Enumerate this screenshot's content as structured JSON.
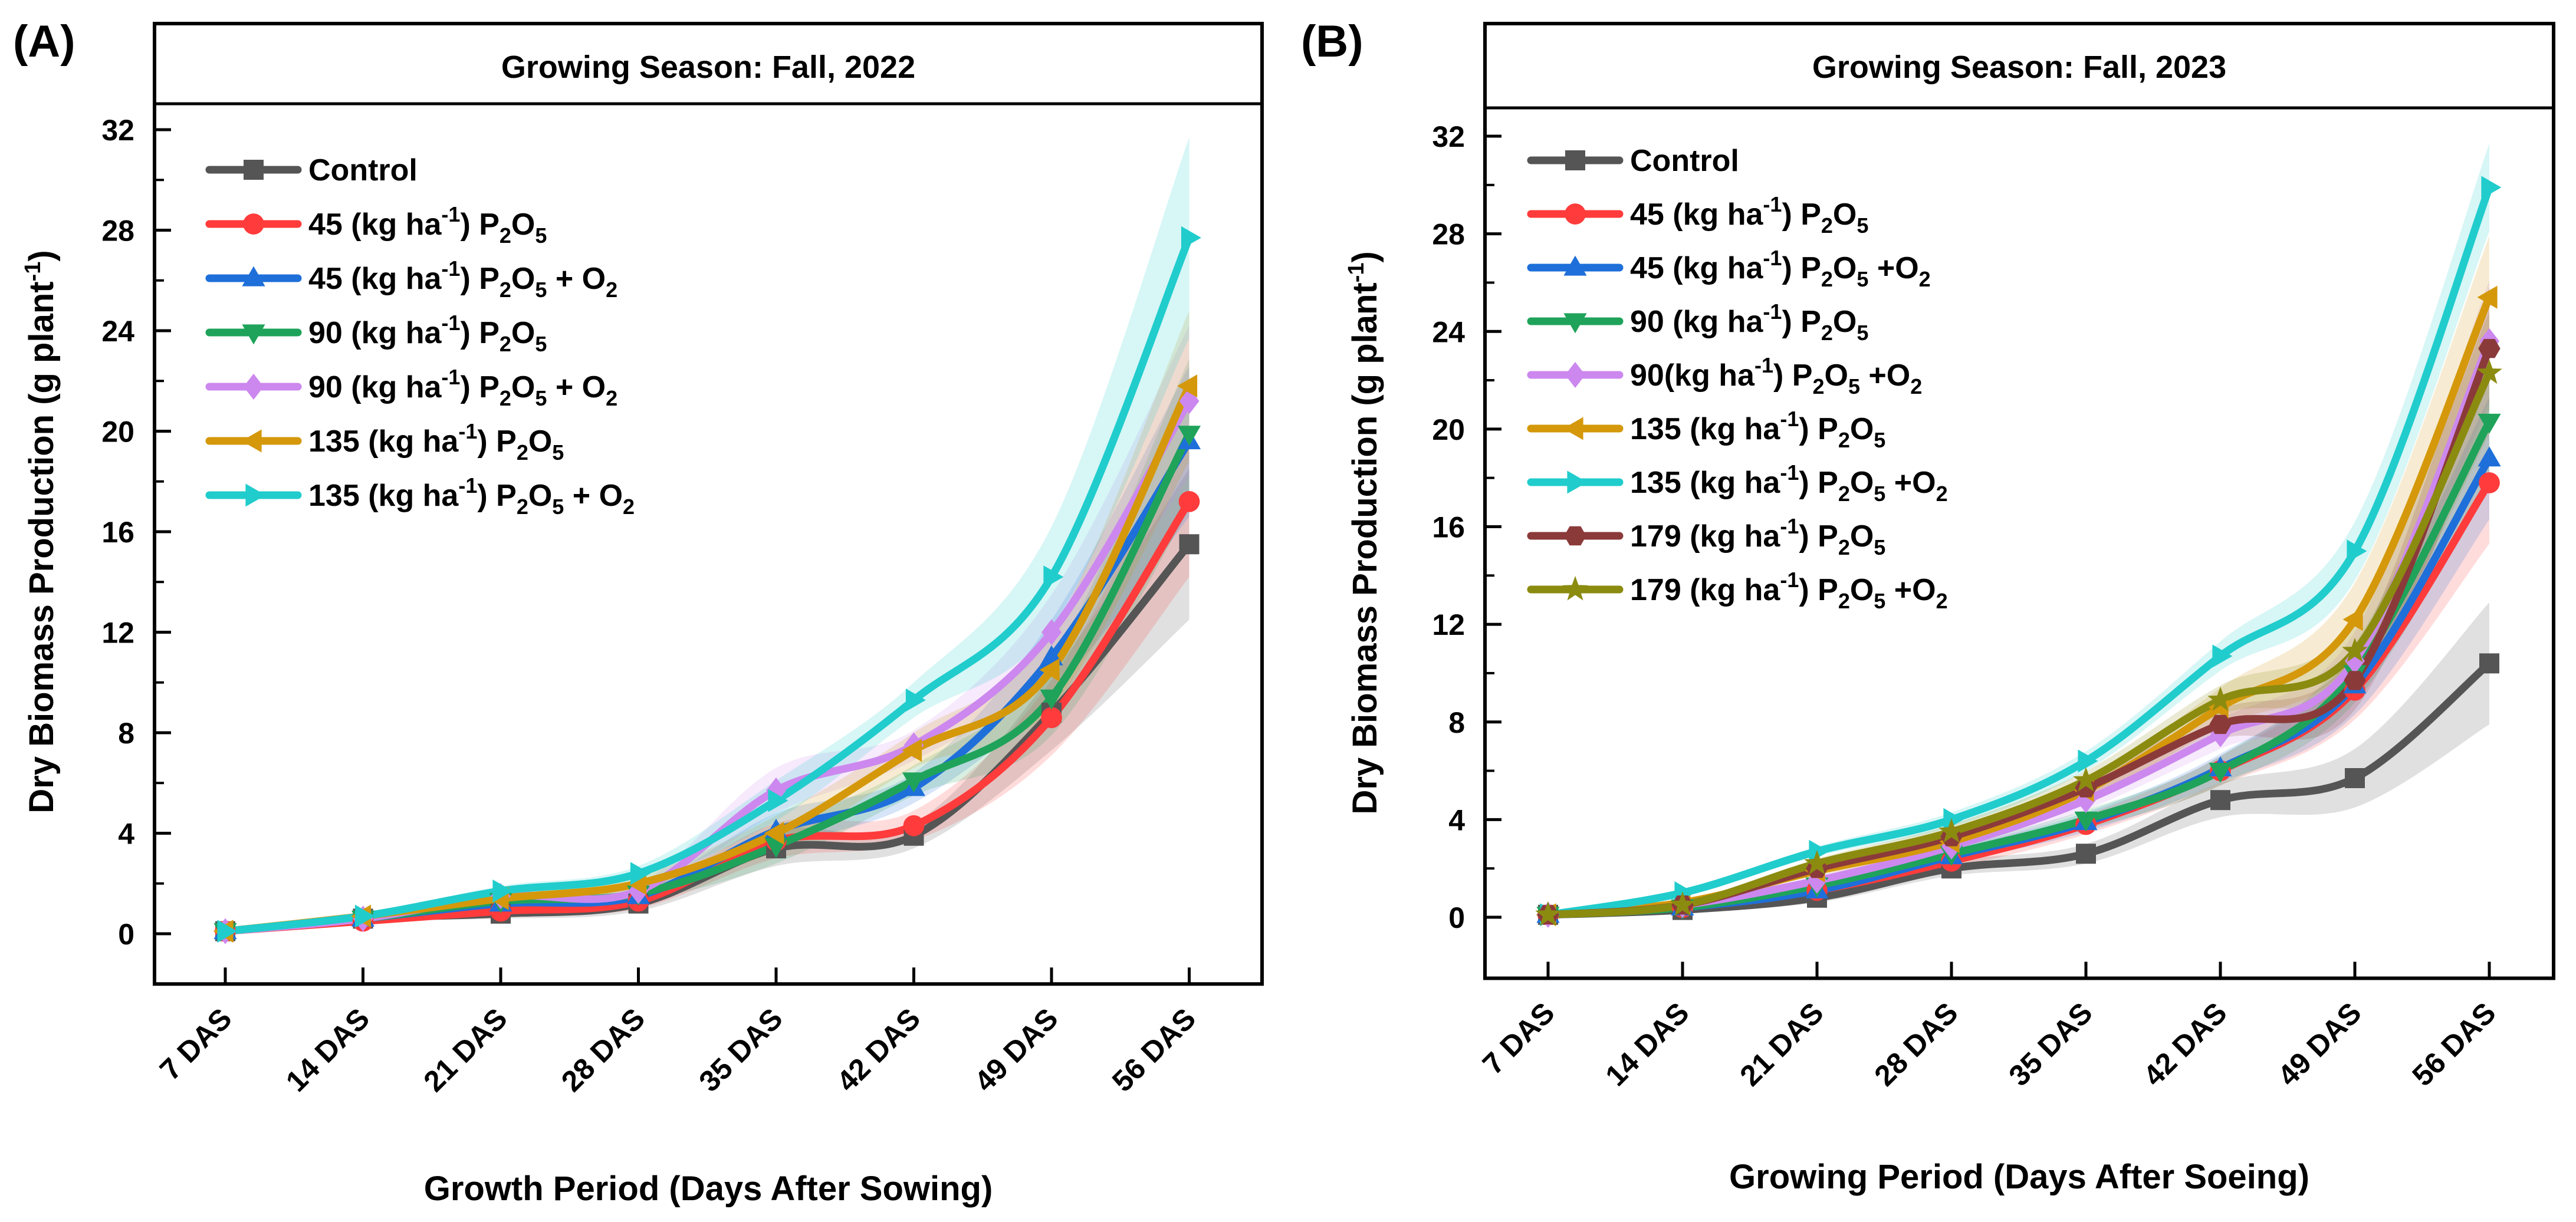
{
  "chart_data": [
    {
      "panel_label": "(A)",
      "type": "line",
      "title": "Growing Season: Fall, 2022",
      "xlabel": "Growth Period (Days After Sowing)",
      "ylabel": "Dry Biomass Production (g plant",
      "ylabel_sup": "-1",
      "ylabel_close": ")",
      "ylim": [
        -2,
        34
      ],
      "yticks": [
        0,
        4,
        8,
        12,
        16,
        20,
        24,
        28,
        32
      ],
      "yticklabels": [
        "0",
        "4",
        "8",
        "12",
        "16",
        "20",
        "24",
        "28",
        "32"
      ],
      "categories": [
        "7 DAS",
        "14 DAS",
        "21 DAS",
        "28 DAS",
        "35 DAS",
        "42 DAS",
        "49 DAS",
        "56 DAS"
      ],
      "legend_position": "top-left",
      "series": [
        {
          "name": "Control",
          "label": {
            "pre": "Control",
            "sup": "",
            "mid": "",
            "sub": "",
            "post": "",
            "sub2": ""
          },
          "color": "#555555",
          "marker": "square",
          "values": [
            0.1,
            0.6,
            0.8,
            1.2,
            3.4,
            3.9,
            8.8,
            15.5
          ],
          "err": [
            0.1,
            0.1,
            0.2,
            0.3,
            0.7,
            0.5,
            1.5,
            3.0
          ]
        },
        {
          "name": "45 (kg ha-1) P2O5",
          "label": {
            "pre": "45 (kg ha",
            "sup": "-1",
            "mid": ") P",
            "sub": "2",
            "post": "O",
            "sub2": "5",
            "tail": ""
          },
          "color": "#ff3b3b",
          "marker": "circle",
          "values": [
            0.1,
            0.5,
            0.9,
            1.3,
            3.7,
            4.3,
            8.6,
            17.2
          ],
          "err": [
            0.1,
            0.1,
            0.2,
            0.3,
            0.7,
            0.6,
            1.5,
            3.0
          ]
        },
        {
          "name": "45 (kg ha-1) P2O5 + O2",
          "label": {
            "pre": "45 (kg ha",
            "sup": "-1",
            "mid": ") P",
            "sub": "2",
            "post": "O",
            "sub2": "5",
            "tail": " + O",
            "sub3": "2"
          },
          "color": "#1e6fd9",
          "marker": "triangle-up",
          "values": [
            0.1,
            0.6,
            1.2,
            1.5,
            4.1,
            5.8,
            11.0,
            19.6
          ],
          "err": [
            0.1,
            0.1,
            0.2,
            0.3,
            0.7,
            0.6,
            1.5,
            3.0
          ]
        },
        {
          "name": "90 (kg ha-1) P2O5",
          "label": {
            "pre": "90 (kg ha",
            "sup": "-1",
            "mid": ") P",
            "sub": "2",
            "post": "O",
            "sub2": "5",
            "tail": ""
          },
          "color": "#1fa35a",
          "marker": "triangle-down",
          "values": [
            0.1,
            0.6,
            1.3,
            1.6,
            3.5,
            6.1,
            9.4,
            19.9
          ],
          "err": [
            0.1,
            0.1,
            0.2,
            0.3,
            0.7,
            0.6,
            1.5,
            3.0
          ]
        },
        {
          "name": "90 (kg ha-1) P2O5 + O2",
          "label": {
            "pre": "90 (kg ha",
            "sup": "-1",
            "mid": ") P",
            "sub": "2",
            "post": "O",
            "sub2": "5",
            "tail": " + O",
            "sub3": "2"
          },
          "color": "#cc88ee",
          "marker": "diamond",
          "values": [
            0.1,
            0.6,
            1.5,
            1.7,
            5.7,
            7.5,
            12.0,
            21.2
          ],
          "err": [
            0.1,
            0.1,
            0.2,
            0.3,
            0.9,
            0.6,
            1.5,
            3.0
          ]
        },
        {
          "name": "135 (kg ha-1) P2O5",
          "label": {
            "pre": "135 (kg ha",
            "sup": "-1",
            "mid": ") P",
            "sub": "2",
            "post": "O",
            "sub2": "5",
            "tail": ""
          },
          "color": "#d4980a",
          "marker": "triangle-left",
          "values": [
            0.1,
            0.7,
            1.4,
            2.0,
            4.0,
            7.3,
            10.5,
            21.8
          ],
          "err": [
            0.1,
            0.1,
            0.2,
            0.3,
            0.7,
            0.7,
            1.5,
            3.0
          ]
        },
        {
          "name": "135 (kg ha-1) P2O5 + O2",
          "label": {
            "pre": "135 (kg ha",
            "sup": "-1",
            "mid": ") P",
            "sub": "2",
            "post": "O",
            "sub2": "5",
            "tail": " + O",
            "sub3": "2"
          },
          "color": "#21cccc",
          "marker": "triangle-right",
          "values": [
            0.1,
            0.7,
            1.7,
            2.4,
            5.3,
            9.3,
            14.2,
            27.7
          ],
          "err": [
            0.1,
            0.1,
            0.2,
            0.3,
            0.8,
            0.7,
            2.0,
            4.0
          ]
        }
      ]
    },
    {
      "panel_label": "(B)",
      "type": "line",
      "title": "Growing Season: Fall, 2023",
      "xlabel": "Growing Period (Days After Soeing)",
      "ylabel": "Dry Biomass Production (g plant",
      "ylabel_sup": "-1",
      "ylabel_close": ")",
      "ylim": [
        -2.5,
        34
      ],
      "yticks": [
        0,
        4,
        8,
        12,
        16,
        20,
        24,
        28,
        32
      ],
      "yticklabels": [
        "0",
        "4",
        "8",
        "12",
        "16",
        "20",
        "24",
        "28",
        "32"
      ],
      "categories": [
        "7 DAS",
        "14 DAS",
        "21 DAS",
        "28 DAS",
        "35 DAS",
        "42 DAS",
        "49 DAS",
        "56 DAS"
      ],
      "legend_position": "top-left",
      "series": [
        {
          "name": "Control",
          "label": {
            "pre": "Control",
            "sup": "",
            "mid": "",
            "sub": "",
            "post": "",
            "sub2": ""
          },
          "color": "#555555",
          "marker": "square",
          "values": [
            0.1,
            0.3,
            0.8,
            2.0,
            2.6,
            4.8,
            5.7,
            10.4
          ],
          "err": [
            0.1,
            0.1,
            0.2,
            0.3,
            0.4,
            0.7,
            1.2,
            2.5
          ]
        },
        {
          "name": "45 (kg ha-1) P2O5",
          "label": {
            "pre": "45 (kg ha",
            "sup": "-1",
            "mid": ") P",
            "sub": "2",
            "post": "O",
            "sub2": "5",
            "tail": ""
          },
          "color": "#ff3b3b",
          "marker": "circle",
          "values": [
            0.1,
            0.4,
            1.1,
            2.3,
            3.8,
            6.0,
            9.3,
            17.8
          ],
          "err": [
            0.1,
            0.1,
            0.2,
            0.3,
            0.4,
            0.6,
            1.2,
            2.5
          ]
        },
        {
          "name": "45 (kg ha-1) P2O5 +O2",
          "label": {
            "pre": "45 (kg ha",
            "sup": "-1",
            "mid": ") P",
            "sub": "2",
            "post": "O",
            "sub2": "5",
            "tail": " +O",
            "sub3": "2"
          },
          "color": "#1e6fd9",
          "marker": "triangle-up",
          "values": [
            0.1,
            0.4,
            1.1,
            2.5,
            3.9,
            6.1,
            9.5,
            18.8
          ],
          "err": [
            0.1,
            0.1,
            0.2,
            0.3,
            0.4,
            0.6,
            1.2,
            2.5
          ]
        },
        {
          "name": "90 (kg ha-1) P2O5",
          "label": {
            "pre": "90 (kg ha",
            "sup": "-1",
            "mid": ") P",
            "sub": "2",
            "post": "O",
            "sub2": "5",
            "tail": ""
          },
          "color": "#1fa35a",
          "marker": "triangle-down",
          "values": [
            0.1,
            0.4,
            1.3,
            2.6,
            4.0,
            6.0,
            10.0,
            20.3
          ],
          "err": [
            0.1,
            0.1,
            0.2,
            0.3,
            0.4,
            0.6,
            1.2,
            2.5
          ]
        },
        {
          "name": "90(kg ha-1) P2O5 +O2",
          "label": {
            "pre": "90(kg ha",
            "sup": "-1",
            "mid": ") P",
            "sub": "2",
            "post": "O",
            "sub2": "5",
            "tail": " +O",
            "sub3": "2"
          },
          "color": "#cc88ee",
          "marker": "diamond",
          "values": [
            0.1,
            0.5,
            1.5,
            2.9,
            4.8,
            7.5,
            10.5,
            23.6
          ],
          "err": [
            0.1,
            0.1,
            0.2,
            0.3,
            0.4,
            0.6,
            1.2,
            2.5
          ]
        },
        {
          "name": "135 (kg ha-1) P2O5",
          "label": {
            "pre": "135 (kg ha",
            "sup": "-1",
            "mid": ") P",
            "sub": "2",
            "post": "O",
            "sub2": "5",
            "tail": ""
          },
          "color": "#d4980a",
          "marker": "triangle-left",
          "values": [
            0.1,
            0.6,
            1.9,
            3.1,
            5.2,
            8.6,
            12.2,
            25.4
          ],
          "err": [
            0.1,
            0.1,
            0.2,
            0.3,
            0.4,
            0.8,
            1.5,
            2.5
          ]
        },
        {
          "name": "135 (kg ha-1) P2O5 +O2",
          "label": {
            "pre": "135 (kg ha",
            "sup": "-1",
            "mid": ") P",
            "sub": "2",
            "post": "O",
            "sub2": "5",
            "tail": " +O",
            "sub3": "2"
          },
          "color": "#21cccc",
          "marker": "triangle-right",
          "values": [
            0.1,
            1.0,
            2.7,
            4.0,
            6.4,
            10.7,
            15.0,
            29.9
          ],
          "err": [
            0.1,
            0.1,
            0.2,
            0.3,
            0.4,
            0.6,
            1.2,
            1.8
          ]
        },
        {
          "name": "179 (kg ha-1) P2O5",
          "label": {
            "pre": "179 (kg ha",
            "sup": "-1",
            "mid": ") P",
            "sub": "2",
            "post": "O",
            "sub2": "5",
            "tail": ""
          },
          "color": "#8b3a3a",
          "marker": "hexagon",
          "values": [
            0.1,
            0.5,
            2.0,
            3.3,
            5.3,
            7.9,
            9.7,
            23.3
          ],
          "err": [
            0.1,
            0.1,
            0.2,
            0.3,
            0.4,
            0.6,
            1.2,
            2.5
          ]
        },
        {
          "name": "179 (kg ha-1) P2O5 +O2",
          "label": {
            "pre": "179 (kg ha",
            "sup": "-1",
            "mid": ") P",
            "sub": "2",
            "post": "O",
            "sub2": "5",
            "tail": " +O",
            "sub3": "2"
          },
          "color": "#8b8b10",
          "marker": "star",
          "values": [
            0.1,
            0.5,
            2.2,
            3.5,
            5.6,
            8.9,
            10.9,
            22.3
          ],
          "err": [
            0.1,
            0.1,
            0.2,
            0.3,
            0.4,
            0.6,
            1.2,
            2.5
          ]
        }
      ]
    }
  ]
}
